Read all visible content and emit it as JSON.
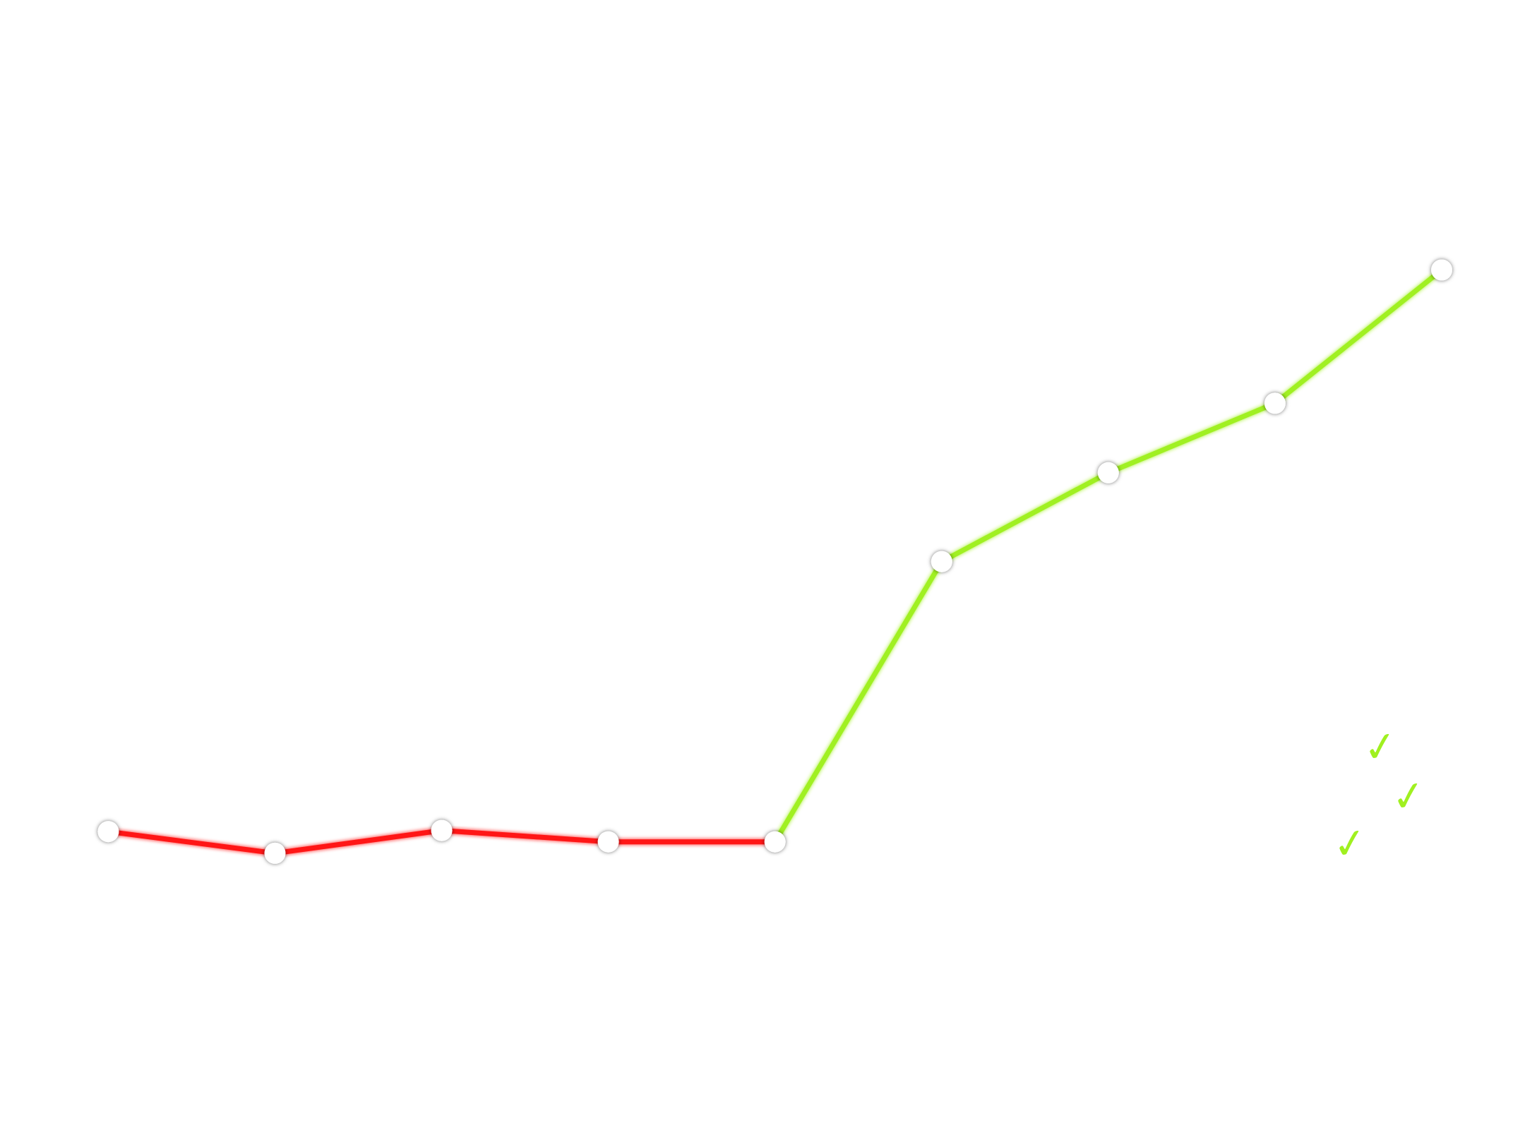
{
  "chart_data": {
    "type": "line",
    "title": "",
    "xlabel": "",
    "ylabel": "",
    "x": [
      1,
      2,
      3,
      4,
      5,
      6,
      7,
      8,
      9
    ],
    "xlim": [
      0.35,
      9.5
    ],
    "ylim": [
      0,
      100
    ],
    "grid": false,
    "legend": "none",
    "series": [
      {
        "color": "#ff1414",
        "x": [
          1,
          2,
          3,
          4,
          5
        ],
        "values": [
          27.0,
          25.1,
          27.1,
          26.1,
          26.1
        ]
      },
      {
        "color": "#a0f020",
        "x": [
          5,
          6,
          7,
          8,
          9
        ],
        "values": [
          26.1,
          50.7,
          58.5,
          64.6,
          76.3
        ]
      }
    ],
    "marker": {
      "fill": "#ffffff",
      "shape": "circle"
    },
    "decorations": [
      {
        "icon": "check-mark-icon",
        "glyph": "✓",
        "color": "#a0f020"
      },
      {
        "icon": "check-mark-icon",
        "glyph": "✓",
        "color": "#a0f020"
      },
      {
        "icon": "check-mark-icon",
        "glyph": "✓",
        "color": "#a0f020"
      }
    ]
  }
}
